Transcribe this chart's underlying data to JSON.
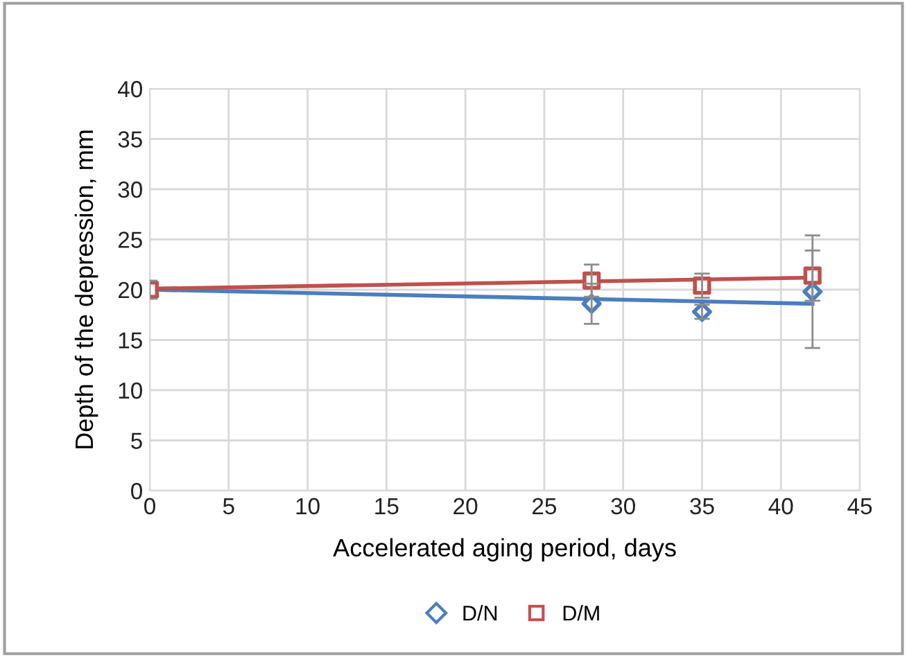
{
  "chart_data": {
    "type": "scatter",
    "xlabel": "Accelerated aging period, days",
    "ylabel": "Depth of the depression, mm",
    "xlim": [
      0,
      45
    ],
    "xticks": [
      0,
      5,
      10,
      15,
      20,
      25,
      30,
      35,
      40,
      45
    ],
    "ylim": [
      0,
      40
    ],
    "yticks": [
      0,
      5,
      10,
      15,
      20,
      25,
      30,
      35,
      40
    ],
    "grid": true,
    "legend": "bottom",
    "series": [
      {
        "name": "D/N",
        "marker": "diamond",
        "color": "#4a7ebf",
        "x": [
          28,
          35,
          42
        ],
        "values": [
          18.6,
          17.8,
          19.8
        ],
        "errors": [
          2,
          0.7,
          5.6
        ]
      },
      {
        "name": "D/M",
        "marker": "square",
        "color": "#c0504d",
        "x": [
          0,
          28,
          35,
          42
        ],
        "values": [
          20,
          20.9,
          20.4,
          21.4
        ],
        "errors": [
          0.9,
          1.6,
          1.2,
          2.5
        ]
      },
      {
        "type": "line",
        "color": "#4a7ebf",
        "x": [
          0,
          42
        ],
        "values": [
          20,
          18.6
        ]
      },
      {
        "type": "line",
        "color": "#c0504d",
        "x": [
          0,
          42
        ],
        "values": [
          20.1,
          21.2
        ]
      }
    ]
  }
}
